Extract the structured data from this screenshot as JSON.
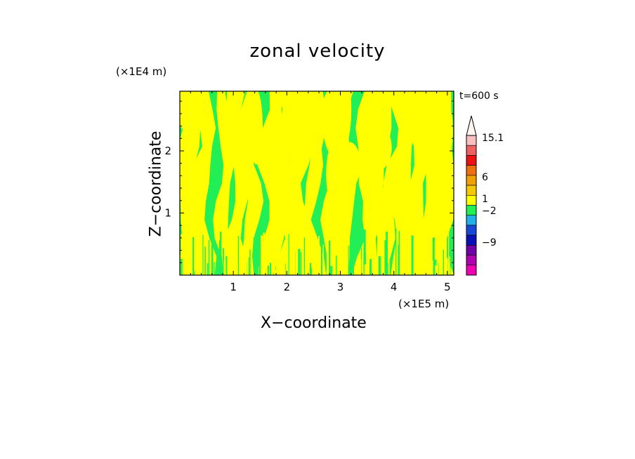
{
  "chart_data": {
    "type": "heatmap",
    "title": "zonal velocity",
    "xlabel": "X−coordinate",
    "ylabel": "Z−coordinate",
    "x_unit": "(×1E5 m)",
    "y_unit": "(×1E4 m)",
    "time_label": "t=600 s",
    "xlim": [
      0,
      5.12
    ],
    "ylim": [
      0,
      2.96
    ],
    "x_ticks": [
      1,
      2,
      3,
      4,
      5
    ],
    "y_ticks": [
      1,
      2
    ],
    "fields": {
      "dominant_values": [
        -2,
        1
      ],
      "colors": {
        "positive": "#ffff00",
        "negative": "#22ee55"
      },
      "description_kind": "alternating vertical plumes"
    },
    "colorbar": {
      "levels_shown": [
        "15.1",
        "6",
        "1",
        "−2",
        "−9"
      ],
      "level_values": [
        15.1,
        6,
        1,
        -2,
        -9
      ],
      "colors_top_to_bottom": [
        "#f8c0c0",
        "#f06060",
        "#ee1111",
        "#f07010",
        "#f0a000",
        "#f5c800",
        "#ffff00",
        "#22ee55",
        "#22b0e8",
        "#1848d8",
        "#0a10b8",
        "#7000a8",
        "#b000b0",
        "#f000b0"
      ]
    }
  }
}
